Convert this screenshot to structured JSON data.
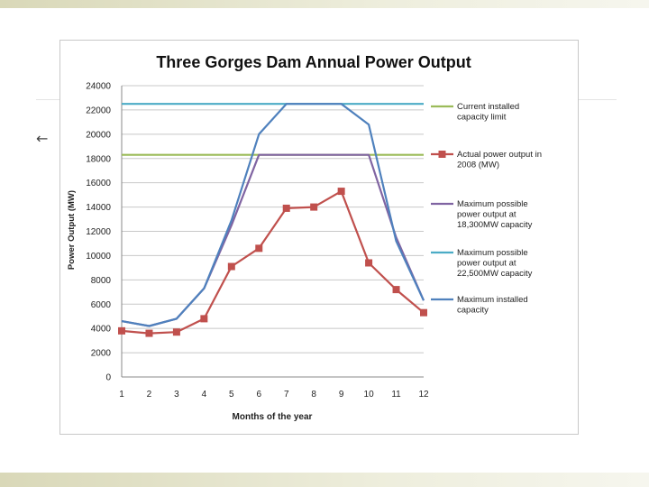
{
  "slide": {
    "back_icon": "left-arrow-icon",
    "back_glyph": "←"
  },
  "chart_data": {
    "type": "line",
    "title": "Three Gorges Dam Annual Power Output",
    "xlabel": "Months of the year",
    "ylabel": "Power Output (MW)",
    "categories": [
      1,
      2,
      3,
      4,
      5,
      6,
      7,
      8,
      9,
      10,
      11,
      12
    ],
    "ylim": [
      0,
      24000
    ],
    "yticks": [
      0,
      2000,
      4000,
      6000,
      8000,
      10000,
      12000,
      14000,
      16000,
      18000,
      20000,
      22000,
      24000
    ],
    "grid": true,
    "legend_position": "right",
    "series": [
      {
        "name": "Current installed capacity limit",
        "legend_lines": [
          "Current installed",
          "capacity limit"
        ],
        "color": "#9bbb59",
        "marker": "none",
        "values": [
          18300,
          18300,
          18300,
          18300,
          18300,
          18300,
          18300,
          18300,
          18300,
          18300,
          18300,
          18300
        ]
      },
      {
        "name": "Actual power output in 2008 (MW)",
        "legend_lines": [
          "Actual power output in",
          "2008 (MW)"
        ],
        "color": "#c0504d",
        "marker": "square",
        "values": [
          3800,
          3600,
          3700,
          4800,
          9100,
          10600,
          13900,
          14000,
          15300,
          9400,
          7200,
          5300
        ]
      },
      {
        "name": "Maximum possible power output at 18,300MW capacity",
        "legend_lines": [
          "Maximum possible",
          "power output at",
          "18,300MW capacity"
        ],
        "color": "#8064a2",
        "marker": "none",
        "values": [
          4600,
          4200,
          4800,
          7300,
          12500,
          18300,
          18300,
          18300,
          18300,
          18300,
          11500,
          6300
        ]
      },
      {
        "name": "Maximum possible power output at 22,500MW capacity",
        "legend_lines": [
          "Maximum possible",
          "power output at",
          "22,500MW capacity"
        ],
        "color": "#4bacc6",
        "marker": "none",
        "values": [
          22500,
          22500,
          22500,
          22500,
          22500,
          22500,
          22500,
          22500,
          22500,
          22500,
          22500,
          22500
        ]
      },
      {
        "name": "Maximum installed capacity",
        "legend_lines": [
          "Maximum installed",
          "capacity"
        ],
        "color": "#4f81bd",
        "marker": "none",
        "values": [
          4600,
          4200,
          4800,
          7300,
          12900,
          20000,
          22500,
          22500,
          22500,
          20800,
          11200,
          6300
        ]
      }
    ]
  }
}
